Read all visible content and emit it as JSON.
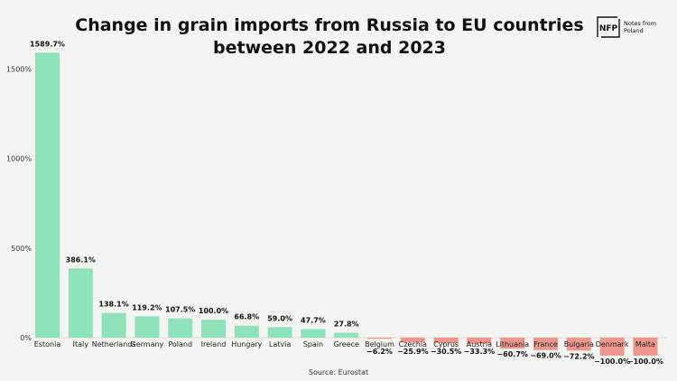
{
  "header": {
    "title_line1": "Change in grain imports from Russia to EU countries",
    "title_line2": "between 2022 and 2023"
  },
  "logo": {
    "mark": "NFP",
    "line1": "Notes from",
    "line2": "Poland"
  },
  "source": "Source: Eurostat",
  "colors": {
    "positive": "#8fe3bb",
    "negative": "#ee968c",
    "background": "#f4f4f2"
  },
  "chart_data": {
    "type": "bar",
    "title": "Change in grain imports from Russia to EU countries between 2022 and 2023",
    "categories": [
      "Estonia",
      "Italy",
      "Netherlands",
      "Germany",
      "Poland",
      "Ireland",
      "Hungary",
      "Latvia",
      "Spain",
      "Greece",
      "Belgium",
      "Czechia",
      "Cyprus",
      "Austria",
      "Lithuania",
      "France",
      "Bulgaria",
      "Denmark",
      "Malta"
    ],
    "values": [
      1589.7,
      386.1,
      138.1,
      119.2,
      107.5,
      100.0,
      66.8,
      59.0,
      47.7,
      27.8,
      -6.2,
      -25.9,
      -30.5,
      -33.3,
      -60.7,
      -69.0,
      -72.2,
      -100.0,
      -100.0
    ],
    "labels": [
      "1589.7%",
      "386.1%",
      "138.1%",
      "119.2%",
      "107.5%",
      "100.0%",
      "66.8%",
      "59.0%",
      "47.7%",
      "27.8%",
      "−6.2%",
      "−25.9%",
      "−30.5%",
      "−33.3%",
      "−60.7%",
      "−69.0%",
      "−72.2%",
      "−100.0%",
      "−100.0%"
    ],
    "yticks": [
      0,
      500,
      1000,
      1500
    ],
    "ytick_labels": [
      "0%",
      "500%",
      "1000%",
      "1500%"
    ],
    "ylim": [
      -100,
      1650
    ],
    "xlabel": "",
    "ylabel": "",
    "grid": false,
    "legend": "none"
  }
}
